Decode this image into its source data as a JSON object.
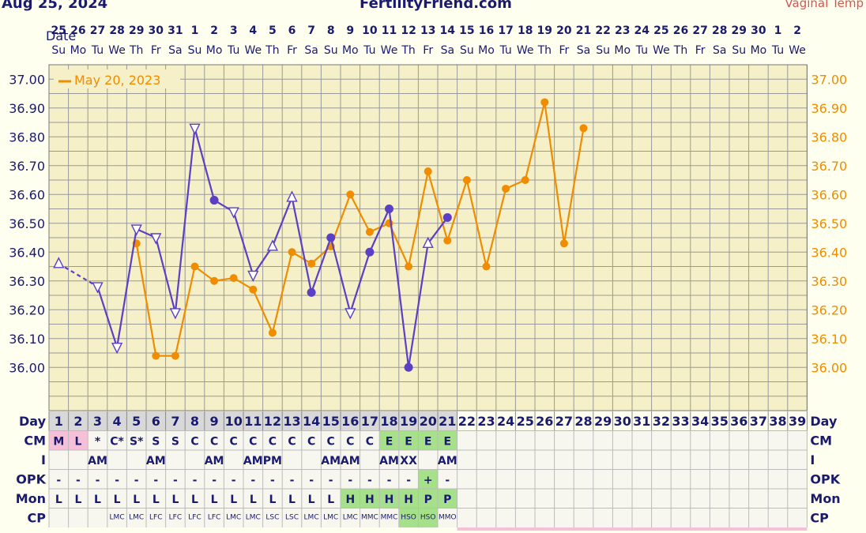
{
  "header": {
    "date_text": "Aug 25, 2024",
    "site_name": "FertilityFriend.com",
    "temp_type": "Vaginal Temp"
  },
  "colors": {
    "current_series": "#5b3fc4",
    "overlay_series": "#f08c00",
    "grid": "#999999",
    "plot_bg": "#f5f0c8",
    "green_cell": "#a6e08a",
    "pink_cell": "#f5c0d8"
  },
  "chart_data": {
    "type": "line",
    "xlabel": "Date",
    "ylim": [
      35.85,
      37.05
    ],
    "y_ticks": [
      37.0,
      36.9,
      36.8,
      36.7,
      36.6,
      36.5,
      36.4,
      36.3,
      36.2,
      36.1,
      36.0
    ],
    "y_tick_labels": [
      "37.00",
      "36.90",
      "36.80",
      "36.70",
      "36.60",
      "36.50",
      "36.40",
      "36.30",
      "36.20",
      "36.10",
      "36.00"
    ],
    "date_numbers": [
      "25",
      "26",
      "27",
      "28",
      "29",
      "30",
      "31",
      "1",
      "2",
      "3",
      "4",
      "5",
      "6",
      "7",
      "8",
      "9",
      "10",
      "11",
      "12",
      "13",
      "14",
      "15",
      "16",
      "17",
      "18",
      "19",
      "20",
      "21",
      "22",
      "23",
      "24",
      "25",
      "26",
      "27",
      "28",
      "29",
      "30",
      "1",
      "2"
    ],
    "weekdays": [
      "Su",
      "Mo",
      "Tu",
      "We",
      "Th",
      "Fr",
      "Sa",
      "Su",
      "Mo",
      "Tu",
      "We",
      "Th",
      "Fr",
      "Sa",
      "Su",
      "Mo",
      "Tu",
      "We",
      "Th",
      "Fr",
      "Sa",
      "Su",
      "Mo",
      "Tu",
      "We",
      "Th",
      "Fr",
      "Sa",
      "Su",
      "Mo",
      "Tu",
      "We",
      "Th",
      "Fr",
      "Sa",
      "Su",
      "Mo",
      "Tu",
      "We"
    ],
    "cycle_days": [
      "1",
      "2",
      "3",
      "4",
      "5",
      "6",
      "7",
      "8",
      "9",
      "10",
      "11",
      "12",
      "13",
      "14",
      "15",
      "16",
      "17",
      "18",
      "19",
      "20",
      "21",
      "22",
      "23",
      "24",
      "25",
      "26",
      "27",
      "28",
      "29",
      "30",
      "31",
      "32",
      "33",
      "34",
      "35",
      "36",
      "37",
      "38",
      "39"
    ],
    "legend": "May 20, 2023",
    "series": [
      {
        "name": "current",
        "points": [
          {
            "day": 1,
            "temp": 36.36,
            "marker": "triangle-up",
            "dashed_to_next": true
          },
          {
            "day": 3,
            "temp": 36.28,
            "marker": "triangle-down"
          },
          {
            "day": 4,
            "temp": 36.07,
            "marker": "triangle-down"
          },
          {
            "day": 5,
            "temp": 36.48,
            "marker": "triangle-down"
          },
          {
            "day": 6,
            "temp": 36.45,
            "marker": "triangle-down"
          },
          {
            "day": 7,
            "temp": 36.19,
            "marker": "triangle-down"
          },
          {
            "day": 8,
            "temp": 36.83,
            "marker": "triangle-down"
          },
          {
            "day": 9,
            "temp": 36.58,
            "marker": "dot"
          },
          {
            "day": 10,
            "temp": 36.54,
            "marker": "triangle-down"
          },
          {
            "day": 11,
            "temp": 36.32,
            "marker": "triangle-down"
          },
          {
            "day": 12,
            "temp": 36.42,
            "marker": "triangle-up"
          },
          {
            "day": 13,
            "temp": 36.59,
            "marker": "triangle-up"
          },
          {
            "day": 14,
            "temp": 36.26,
            "marker": "dot"
          },
          {
            "day": 15,
            "temp": 36.45,
            "marker": "dot"
          },
          {
            "day": 16,
            "temp": 36.19,
            "marker": "triangle-down"
          },
          {
            "day": 17,
            "temp": 36.4,
            "marker": "dot"
          },
          {
            "day": 18,
            "temp": 36.55,
            "marker": "dot"
          },
          {
            "day": 19,
            "temp": 36.0,
            "marker": "dot"
          },
          {
            "day": 20,
            "temp": 36.43,
            "marker": "triangle-up"
          },
          {
            "day": 21,
            "temp": 36.52,
            "marker": "dot"
          }
        ]
      },
      {
        "name": "May 20, 2023",
        "points": [
          {
            "day": 5,
            "temp": 36.43
          },
          {
            "day": 6,
            "temp": 36.04
          },
          {
            "day": 7,
            "temp": 36.04
          },
          {
            "day": 8,
            "temp": 36.35
          },
          {
            "day": 9,
            "temp": 36.3
          },
          {
            "day": 10,
            "temp": 36.31
          },
          {
            "day": 11,
            "temp": 36.27
          },
          {
            "day": 12,
            "temp": 36.12
          },
          {
            "day": 13,
            "temp": 36.4
          },
          {
            "day": 14,
            "temp": 36.36
          },
          {
            "day": 15,
            "temp": 36.42
          },
          {
            "day": 16,
            "temp": 36.6
          },
          {
            "day": 17,
            "temp": 36.47
          },
          {
            "day": 18,
            "temp": 36.5
          },
          {
            "day": 19,
            "temp": 36.35
          },
          {
            "day": 20,
            "temp": 36.68
          },
          {
            "day": 21,
            "temp": 36.44
          },
          {
            "day": 22,
            "temp": 36.65
          },
          {
            "day": 23,
            "temp": 36.35
          },
          {
            "day": 24,
            "temp": 36.62
          },
          {
            "day": 25,
            "temp": 36.65
          },
          {
            "day": 26,
            "temp": 36.92
          },
          {
            "day": 27,
            "temp": 36.43
          },
          {
            "day": 28,
            "temp": 36.83
          }
        ]
      }
    ]
  },
  "rows": {
    "day_label": "Day",
    "cm": {
      "label": "CM",
      "cells": [
        "M",
        "L",
        "*",
        "C*",
        "S*",
        "S",
        "S",
        "C",
        "C",
        "C",
        "C",
        "C",
        "C",
        "C",
        "C",
        "C",
        "C",
        "E",
        "E",
        "E",
        "E"
      ],
      "highlight": {
        "1": "pink",
        "2": "pink",
        "18": "green",
        "19": "green",
        "20": "green",
        "21": "green"
      }
    },
    "i": {
      "label": "I",
      "cells": [
        "",
        "",
        "AM",
        "",
        "",
        "AM",
        "",
        "",
        "AM",
        "",
        "AM",
        "PM",
        "",
        "",
        "AM",
        "AM",
        "",
        "AM",
        "XX",
        "",
        "AM"
      ]
    },
    "opk": {
      "label": "OPK",
      "cells": [
        "-",
        "-",
        "-",
        "-",
        "-",
        "-",
        "-",
        "-",
        "-",
        "-",
        "-",
        "-",
        "-",
        "-",
        "-",
        "-",
        "-",
        "-",
        "-",
        "+",
        "-"
      ],
      "highlight": {
        "20": "green"
      }
    },
    "mon": {
      "label": "Mon",
      "cells": [
        "L",
        "L",
        "L",
        "L",
        "L",
        "L",
        "L",
        "L",
        "L",
        "L",
        "L",
        "L",
        "L",
        "L",
        "L",
        "H",
        "H",
        "H",
        "H",
        "P",
        "P"
      ],
      "highlight": {
        "16": "green",
        "17": "green",
        "18": "green",
        "19": "green",
        "20": "green",
        "21": "green"
      }
    },
    "cp": {
      "label": "CP",
      "cells": [
        "",
        "",
        "",
        "LMC",
        "LMC",
        "LFC",
        "LFC",
        "LFC",
        "LFC",
        "LMC",
        "LMC",
        "LSC",
        "LSC",
        "LMC",
        "LMC",
        "LMC",
        "MMC",
        "MMC",
        "HSO",
        "HSO",
        "MMO"
      ],
      "highlight": {
        "19": "green",
        "20": "green"
      }
    }
  }
}
